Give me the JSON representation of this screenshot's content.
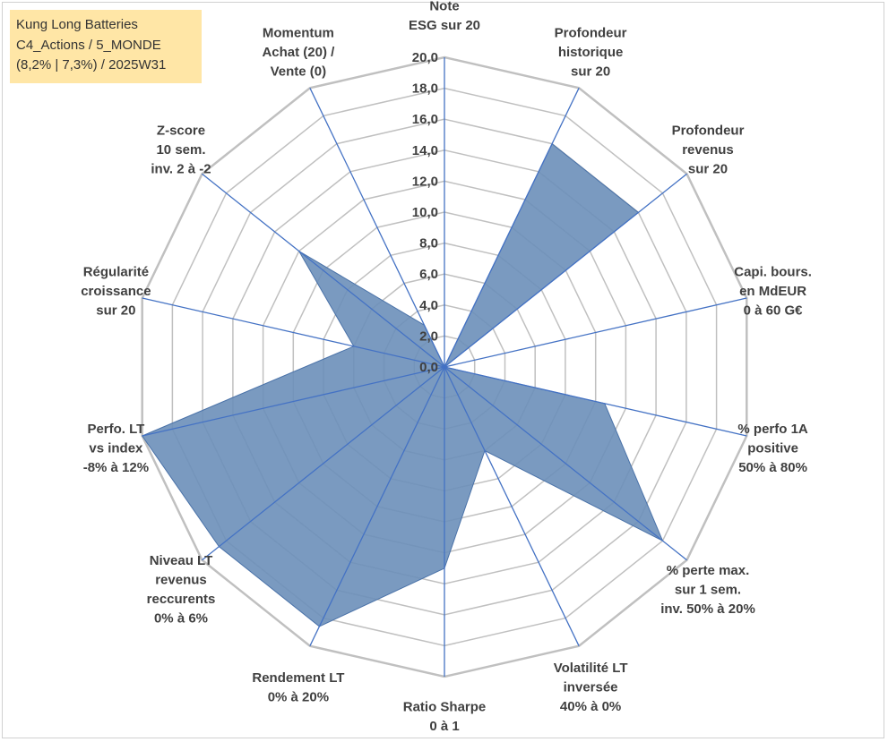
{
  "title_lines": [
    "Kung Long Batteries",
    "C4_Actions / 5_MONDE",
    "(8,2% | 7,3%) / 2025W31"
  ],
  "chart_data": {
    "type": "radar",
    "title": "Kung Long Batteries C4_Actions / 5_MONDE (8,2% | 7,3%) / 2025W31",
    "rmin": 0,
    "rmax": 20,
    "tick_step": 2,
    "ticks": [
      "0,0",
      "2,0",
      "4,0",
      "6,0",
      "8,0",
      "10,0",
      "12,0",
      "14,0",
      "16,0",
      "18,0",
      "20,0"
    ],
    "grid": true,
    "legend": "none",
    "categories": [
      [
        "Note",
        "ESG sur 20"
      ],
      [
        "Profondeur",
        "historique",
        "sur 20"
      ],
      [
        "Profondeur",
        "revenus",
        "sur 20"
      ],
      [
        "Capi. bours.",
        "en MdEUR",
        "0 à 60 G€"
      ],
      [
        "% perfo 1A",
        "positive",
        "50% à 80%"
      ],
      [
        "% perte max.",
        "sur 1 sem.",
        "inv. 50% à 20%"
      ],
      [
        "Volatilité LT",
        "inversée",
        "40% à 0%"
      ],
      [
        "Ratio Sharpe",
        "0 à 1"
      ],
      [
        "Rendement LT",
        "0% à 20%"
      ],
      [
        "Niveau LT",
        "revenus",
        "reccurents",
        "0% à 6%"
      ],
      [
        "Perfo. LT",
        "vs index",
        "-8% à 12%"
      ],
      [
        "Régularité",
        "croissance",
        "sur 20"
      ],
      [
        "Z-score",
        "10 sem.",
        "inv. 2 à -2"
      ],
      [
        "Momentum",
        "Achat (20) /",
        "Vente (0)"
      ]
    ],
    "series": [
      {
        "values": [
          0.0,
          16.0,
          16.0,
          0.0,
          10.6,
          18.0,
          6.0,
          13.0,
          18.6,
          18.6,
          20.0,
          6.0,
          12.0,
          3.0
        ]
      }
    ],
    "colors": {
      "fill": "#6c8fb9",
      "stroke": "#4a72a8",
      "grid": "#c0c0c0",
      "spoke": "#4472c4"
    }
  }
}
